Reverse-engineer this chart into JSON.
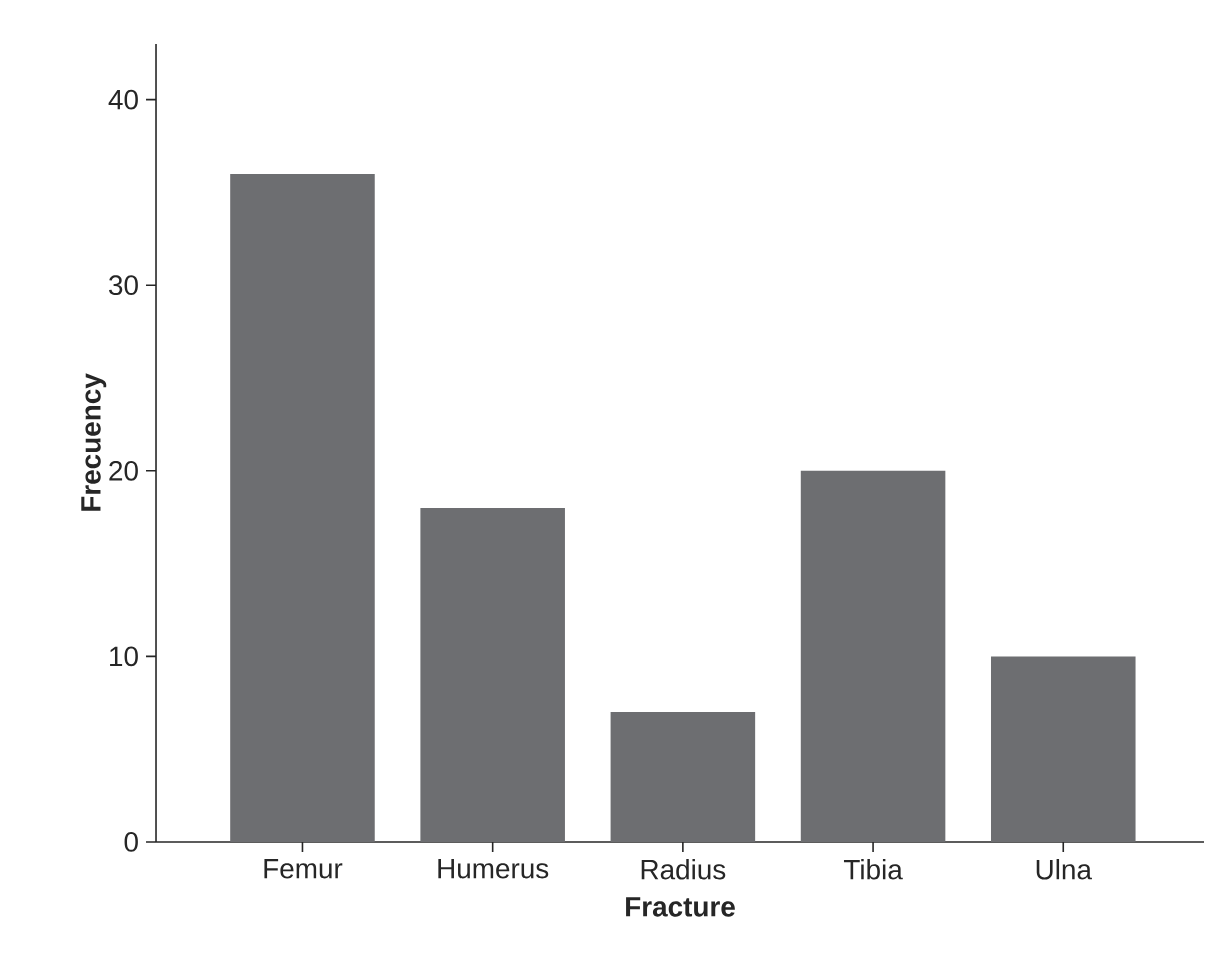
{
  "chart_data": {
    "type": "bar",
    "xlabel": "Fracture",
    "ylabel": "Frecuency",
    "categories": [
      "Femur",
      "Humerus",
      "Radius",
      "Tibia",
      "Ulna"
    ],
    "values": [
      36,
      18,
      7,
      20,
      10
    ],
    "color": "#6d6e71",
    "ylim": [
      0,
      43
    ],
    "yticks": [
      0,
      10,
      20,
      30,
      40
    ],
    "grid": false
  }
}
